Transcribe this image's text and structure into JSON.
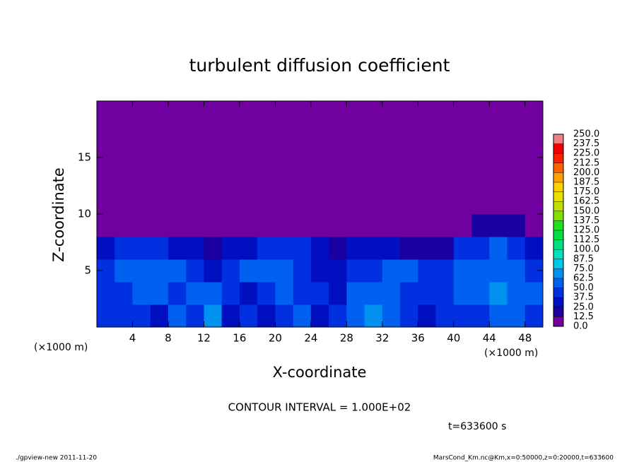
{
  "chart_data": {
    "type": "heatmap",
    "title": "turbulent diffusion coefficient",
    "x_label": "X-coordinate",
    "y_label": "Z-coordinate",
    "x_unit": "(×1000 m)",
    "x_unit_right": "(×1000 m)",
    "note": "CONTOUR INTERVAL = 1.000E+02",
    "time": "t=633600 s",
    "footer_left": "./gpview-new  2011-11-20",
    "footer_right": "MarsCond_Km.nc@Km,x=0:50000,z=0:20000,t=633600",
    "xlim": [
      0,
      50
    ],
    "ylim": [
      0,
      20
    ],
    "xticks": [
      4,
      8,
      12,
      16,
      20,
      24,
      28,
      32,
      36,
      40,
      44,
      48
    ],
    "yticks": [
      5,
      10,
      15
    ],
    "x": [
      1,
      3,
      5,
      7,
      9,
      11,
      13,
      15,
      17,
      19,
      21,
      23,
      25,
      27,
      29,
      31,
      33,
      35,
      37,
      39,
      41,
      43,
      45,
      47,
      49
    ],
    "y": [
      1,
      3,
      5,
      7,
      9,
      11,
      13,
      15,
      17,
      19
    ],
    "z": [
      [
        40,
        45,
        40,
        35,
        50,
        45,
        70,
        30,
        40,
        35,
        45,
        50,
        35,
        40,
        60,
        70,
        55,
        40,
        35,
        40,
        45,
        40,
        50,
        60,
        45
      ],
      [
        45,
        40,
        55,
        60,
        40,
        55,
        50,
        45,
        35,
        40,
        55,
        45,
        40,
        35,
        55,
        60,
        50,
        45,
        40,
        45,
        50,
        60,
        65,
        55,
        50
      ],
      [
        40,
        50,
        60,
        55,
        60,
        45,
        35,
        40,
        50,
        60,
        55,
        45,
        35,
        30,
        40,
        45,
        50,
        55,
        40,
        45,
        55,
        50,
        60,
        55,
        45
      ],
      [
        30,
        40,
        45,
        40,
        35,
        25,
        20,
        25,
        35,
        40,
        45,
        40,
        25,
        20,
        25,
        30,
        25,
        20,
        15,
        20,
        40,
        45,
        50,
        45,
        35
      ],
      [
        0,
        0,
        0,
        0,
        0,
        0,
        0,
        0,
        0,
        0,
        0,
        10,
        0,
        0,
        0,
        0,
        0,
        0,
        0,
        0,
        0,
        15,
        20,
        15,
        0
      ],
      [
        0,
        0,
        0,
        0,
        0,
        0,
        0,
        0,
        0,
        0,
        0,
        0,
        0,
        0,
        0,
        0,
        0,
        0,
        0,
        0,
        0,
        0,
        0,
        0,
        0
      ],
      [
        0,
        0,
        0,
        0,
        0,
        0,
        0,
        0,
        0,
        0,
        0,
        0,
        0,
        0,
        0,
        0,
        0,
        0,
        0,
        0,
        0,
        0,
        0,
        0,
        0
      ],
      [
        0,
        0,
        0,
        0,
        0,
        0,
        0,
        0,
        0,
        0,
        0,
        0,
        0,
        0,
        0,
        0,
        0,
        0,
        0,
        0,
        0,
        0,
        0,
        0,
        0
      ],
      [
        0,
        0,
        0,
        0,
        0,
        0,
        0,
        0,
        0,
        0,
        0,
        0,
        0,
        0,
        0,
        0,
        0,
        0,
        0,
        0,
        0,
        0,
        0,
        0,
        0
      ],
      [
        0,
        0,
        0,
        0,
        0,
        0,
        0,
        0,
        0,
        0,
        0,
        0,
        0,
        0,
        0,
        0,
        0,
        0,
        0,
        0,
        0,
        0,
        0,
        0,
        0
      ]
    ],
    "levels": [
      {
        "value": 0,
        "label": "0.0"
      },
      {
        "value": 12.5,
        "label": "12.5"
      },
      {
        "value": 25,
        "label": "25.0"
      },
      {
        "value": 37.5,
        "label": "37.5"
      },
      {
        "value": 50,
        "label": "50.0"
      },
      {
        "value": 62.5,
        "label": "62.5"
      },
      {
        "value": 75,
        "label": "75.0"
      },
      {
        "value": 87.5,
        "label": "87.5"
      },
      {
        "value": 100,
        "label": "100.0"
      },
      {
        "value": 112.5,
        "label": "112.5"
      },
      {
        "value": 125,
        "label": "125.0"
      },
      {
        "value": 137.5,
        "label": "137.5"
      },
      {
        "value": 150,
        "label": "150.0"
      },
      {
        "value": 162.5,
        "label": "162.5"
      },
      {
        "value": 175,
        "label": "175.0"
      },
      {
        "value": 187.5,
        "label": "187.5"
      },
      {
        "value": 200,
        "label": "200.0"
      },
      {
        "value": 212.5,
        "label": "212.5"
      },
      {
        "value": 225,
        "label": "225.0"
      },
      {
        "value": 237.5,
        "label": "237.5"
      },
      {
        "value": 250,
        "label": "250.0"
      }
    ],
    "colors": [
      "#7000a0",
      "#1a00a0",
      "#0010c0",
      "#0030e0",
      "#0060f0",
      "#0090f0",
      "#00c8e8",
      "#00e0c0",
      "#00e080",
      "#00e040",
      "#20e020",
      "#80e000",
      "#c0e000",
      "#e8e000",
      "#ffd000",
      "#ffa000",
      "#ff6000",
      "#ff2000",
      "#f00000",
      "#f08080"
    ]
  }
}
